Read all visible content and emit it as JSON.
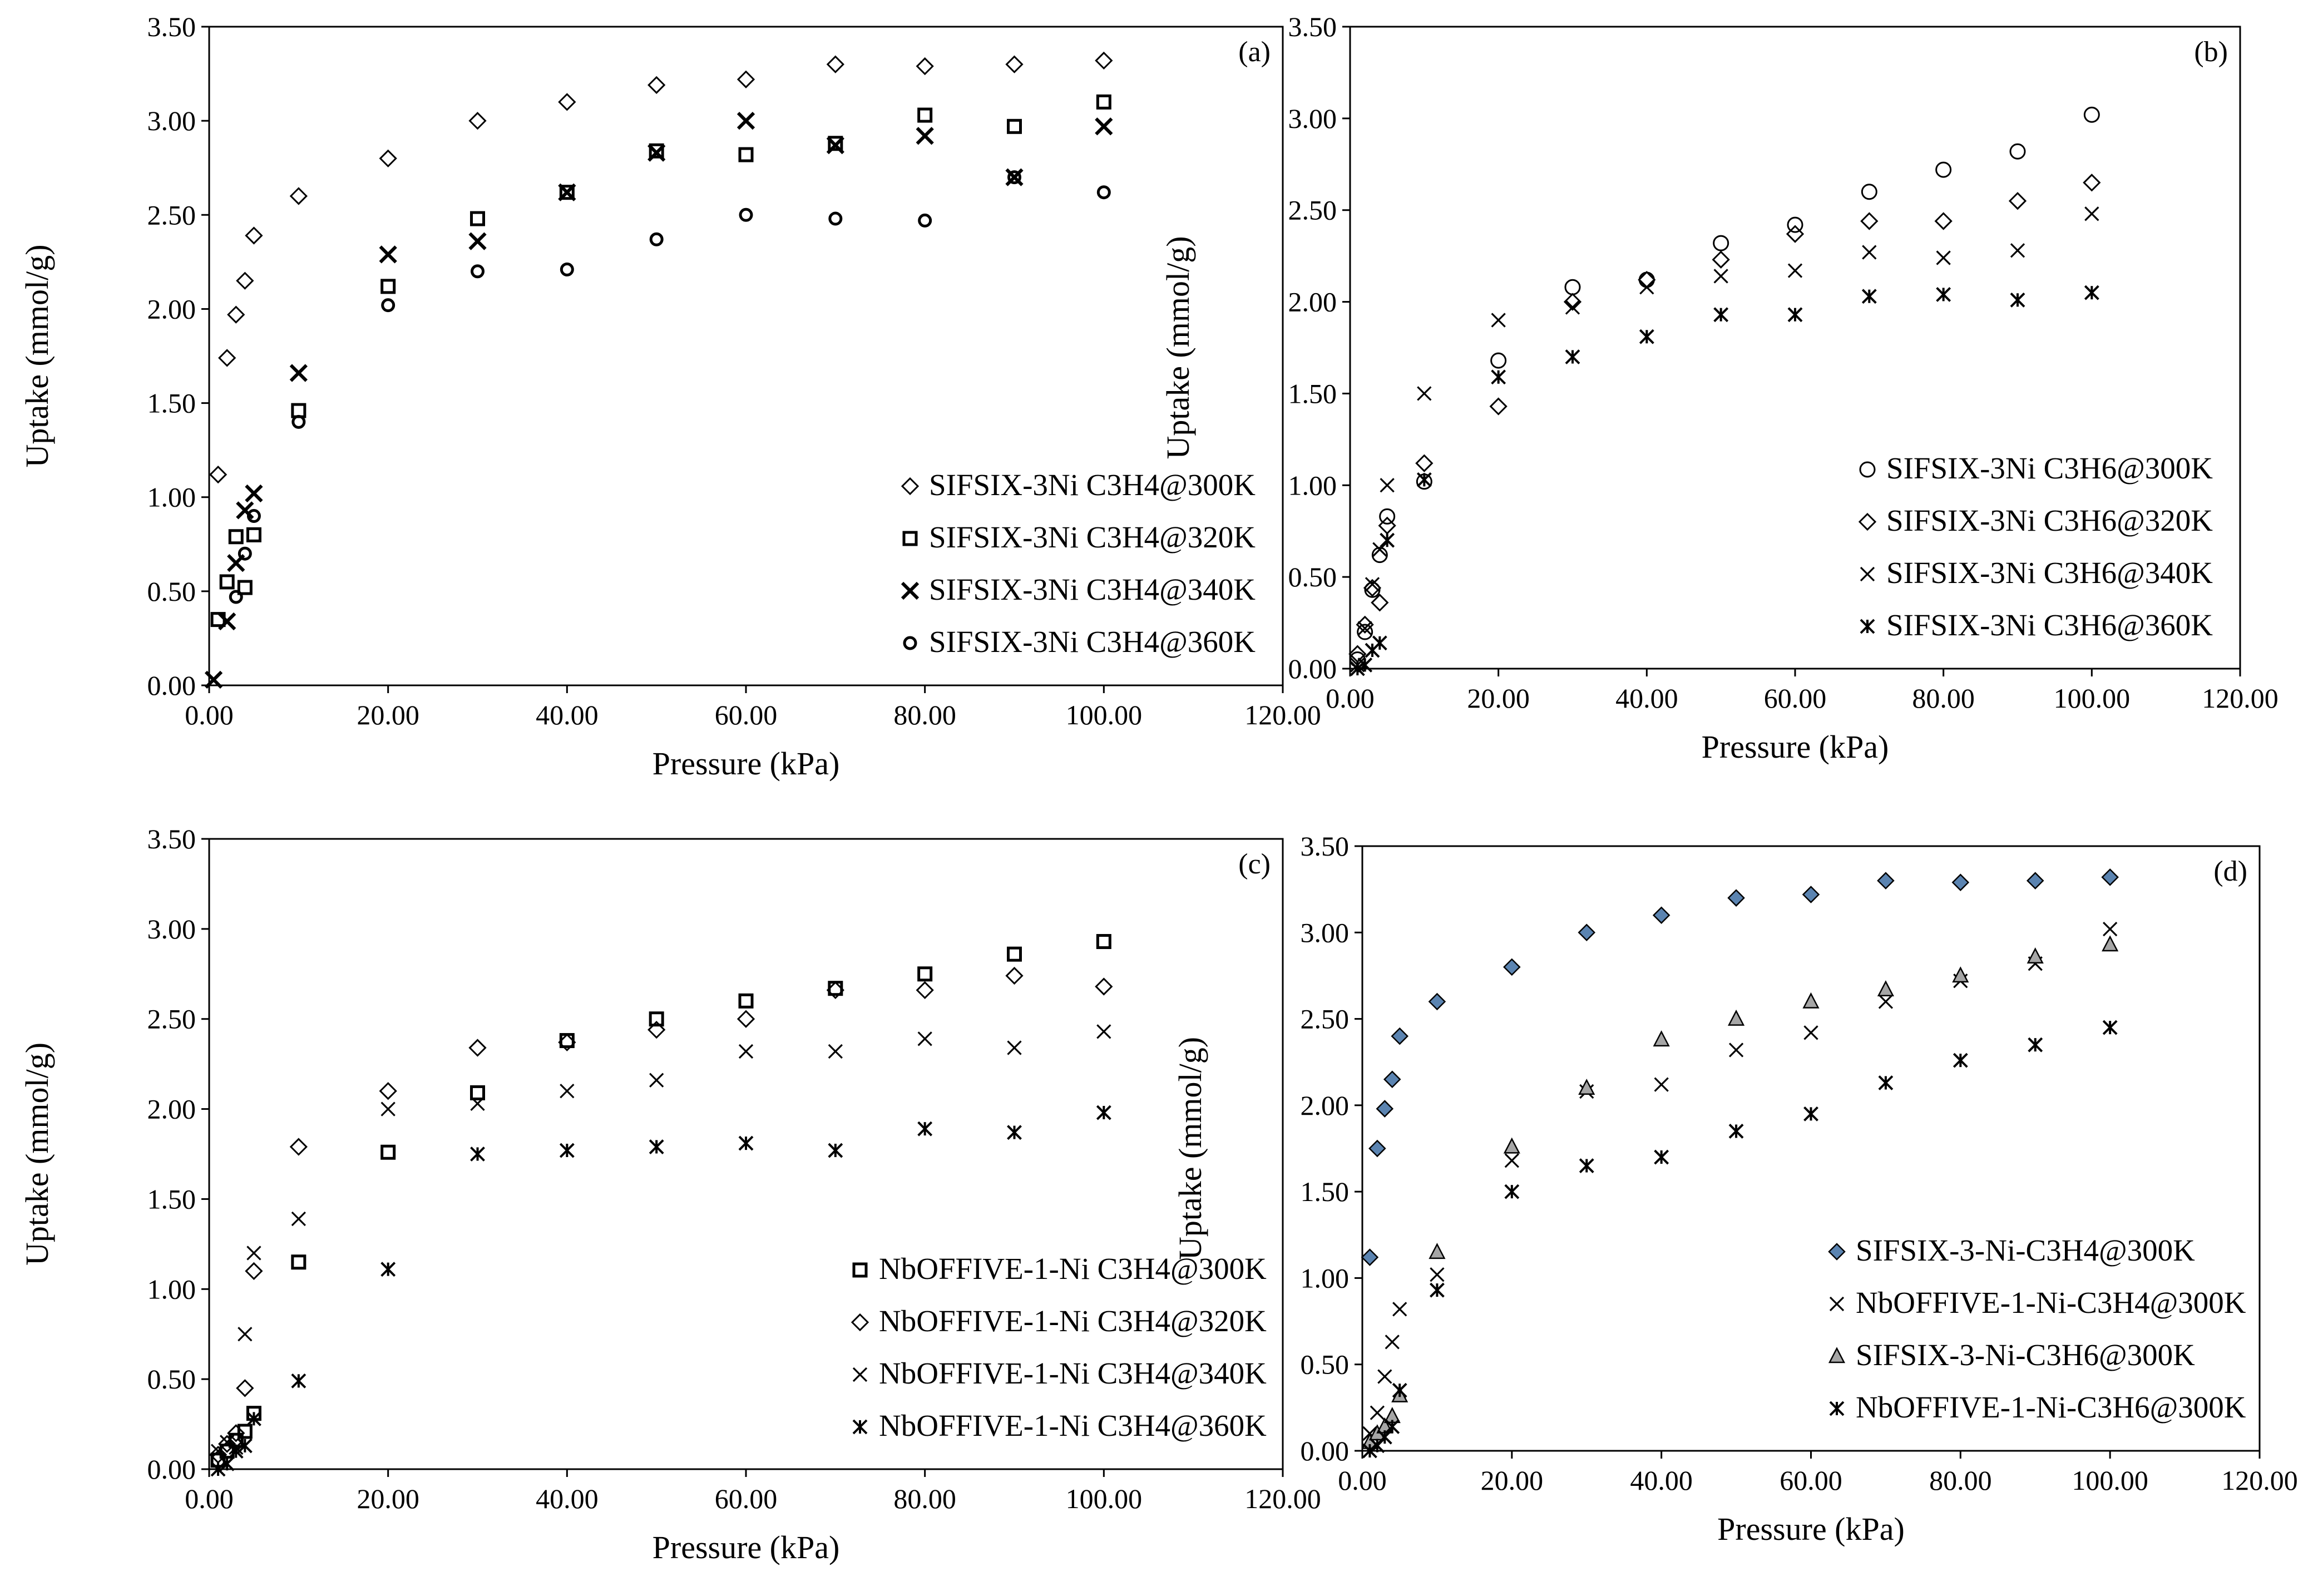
{
  "chart_data": [
    {
      "type": "scatter",
      "panel": "(a)",
      "xlabel": "Pressure (kPa)",
      "ylabel": "Uptake (mmol/g)",
      "xlim": [
        0,
        120
      ],
      "ylim": [
        0,
        3.5
      ],
      "xticks": [
        "0.00",
        "20.00",
        "40.00",
        "60.00",
        "80.00",
        "100.00",
        "120.00"
      ],
      "yticks": [
        "0.00",
        "0.50",
        "1.00",
        "1.50",
        "2.00",
        "2.50",
        "3.00",
        "3.50"
      ],
      "legend_position": "bottom-right",
      "series": [
        {
          "name": "SIFSIX-3Ni C3H4@300K",
          "marker": "diamond",
          "x": [
            1,
            2,
            3,
            4,
            5,
            10,
            20,
            30,
            40,
            50,
            60,
            70,
            80,
            90,
            100
          ],
          "y": [
            1.12,
            1.74,
            1.97,
            2.15,
            2.39,
            2.6,
            2.8,
            3.0,
            3.1,
            3.19,
            3.22,
            3.3,
            3.29,
            3.3,
            3.32
          ]
        },
        {
          "name": "SIFSIX-3Ni C3H4@320K",
          "marker": "square",
          "x": [
            1,
            2,
            3,
            4,
            5,
            10,
            20,
            30,
            40,
            50,
            60,
            70,
            80,
            90,
            100
          ],
          "y": [
            0.35,
            0.55,
            0.79,
            0.52,
            0.8,
            1.46,
            2.12,
            2.48,
            2.62,
            2.84,
            2.82,
            2.88,
            3.03,
            2.97,
            3.1
          ]
        },
        {
          "name": "SIFSIX-3Ni C3H4@340K",
          "marker": "x-bold",
          "x": [
            0.5,
            2,
            3,
            4,
            5,
            10,
            20,
            30,
            40,
            50,
            60,
            70,
            80,
            90,
            100
          ],
          "y": [
            0.03,
            0.34,
            0.65,
            0.93,
            1.02,
            1.66,
            2.29,
            2.36,
            2.62,
            2.83,
            3.0,
            2.87,
            2.92,
            2.7,
            2.97
          ]
        },
        {
          "name": "SIFSIX-3Ni C3H4@360K",
          "marker": "circle-bold",
          "x": [
            3,
            4,
            5,
            10,
            20,
            30,
            40,
            50,
            60,
            70,
            80,
            90,
            100
          ],
          "y": [
            0.47,
            0.7,
            0.9,
            1.4,
            2.02,
            2.2,
            2.21,
            2.37,
            2.5,
            2.48,
            2.47,
            2.7,
            2.62
          ]
        }
      ]
    },
    {
      "type": "scatter",
      "panel": "(b)",
      "xlabel": "Pressure (kPa)",
      "ylabel": "Uptake (mmol/g)",
      "xlim": [
        0,
        120
      ],
      "ylim": [
        0,
        3.5
      ],
      "xticks": [
        "0.00",
        "20.00",
        "40.00",
        "60.00",
        "80.00",
        "100.00",
        "120.00"
      ],
      "yticks": [
        "0.00",
        "0.50",
        "1.00",
        "1.50",
        "2.00",
        "2.50",
        "3.00",
        "3.50"
      ],
      "legend_position": "bottom-right",
      "series": [
        {
          "name": "SIFSIX-3Ni C3H6@300K",
          "marker": "circle",
          "x": [
            1,
            2,
            3,
            4,
            5,
            10,
            20,
            30,
            40,
            50,
            60,
            70,
            80,
            90,
            100
          ],
          "y": [
            0.05,
            0.2,
            0.43,
            0.62,
            0.83,
            1.02,
            1.68,
            2.08,
            2.12,
            2.32,
            2.42,
            2.6,
            2.72,
            2.82,
            3.02
          ]
        },
        {
          "name": "SIFSIX-3Ni C3H6@320K",
          "marker": "diamond",
          "x": [
            1,
            2,
            3,
            4,
            5,
            10,
            20,
            30,
            40,
            50,
            60,
            70,
            80,
            90,
            100
          ],
          "y": [
            0.08,
            0.24,
            0.44,
            0.36,
            0.78,
            1.12,
            1.43,
            2.0,
            2.12,
            2.23,
            2.37,
            2.44,
            2.44,
            2.55,
            2.65
          ]
        },
        {
          "name": "SIFSIX-3Ni C3H6@340K",
          "marker": "x",
          "x": [
            1,
            2,
            3,
            4,
            5,
            10,
            20,
            30,
            40,
            50,
            60,
            70,
            80,
            90,
            100
          ],
          "y": [
            0.02,
            0.22,
            0.46,
            0.65,
            1.0,
            1.5,
            1.9,
            1.97,
            2.08,
            2.14,
            2.17,
            2.27,
            2.24,
            2.28,
            2.48
          ]
        },
        {
          "name": "SIFSIX-3Ni C3H6@360K",
          "marker": "asterisk",
          "x": [
            1,
            2,
            3,
            4,
            5,
            10,
            20,
            30,
            40,
            50,
            60,
            70,
            80,
            90,
            100
          ],
          "y": [
            0.0,
            0.02,
            0.1,
            0.14,
            0.7,
            1.03,
            1.59,
            1.7,
            1.81,
            1.93,
            1.93,
            2.03,
            2.04,
            2.01,
            2.05
          ]
        }
      ]
    },
    {
      "type": "scatter",
      "panel": "(c)",
      "xlabel": "Pressure (kPa)",
      "ylabel": "Uptake (mmol/g)",
      "xlim": [
        0,
        120
      ],
      "ylim": [
        0,
        3.5
      ],
      "xticks": [
        "0.00",
        "20.00",
        "40.00",
        "60.00",
        "80.00",
        "100.00",
        "120.00"
      ],
      "yticks": [
        "0.00",
        "0.50",
        "1.00",
        "1.50",
        "2.00",
        "2.50",
        "3.00",
        "3.50"
      ],
      "legend_position": "bottom-right",
      "series": [
        {
          "name": "NbOFFIVE-1-Ni C3H4@300K",
          "marker": "square",
          "x": [
            1,
            2,
            3,
            4,
            5,
            10,
            20,
            30,
            40,
            50,
            60,
            70,
            80,
            90,
            100
          ],
          "y": [
            0.05,
            0.1,
            0.16,
            0.21,
            0.31,
            1.15,
            1.76,
            2.09,
            2.38,
            2.5,
            2.6,
            2.67,
            2.75,
            2.86,
            2.93
          ]
        },
        {
          "name": "NbOFFIVE-1-Ni C3H4@320K",
          "marker": "diamond",
          "x": [
            1,
            2,
            3,
            4,
            5,
            10,
            20,
            30,
            40,
            50,
            60,
            70,
            80,
            90,
            100
          ],
          "y": [
            0.08,
            0.14,
            0.2,
            0.45,
            1.1,
            1.79,
            2.1,
            2.34,
            2.37,
            2.44,
            2.5,
            2.66,
            2.66,
            2.74,
            2.68
          ]
        },
        {
          "name": "NbOFFIVE-1-Ni C3H4@340K",
          "marker": "x",
          "x": [
            1,
            2,
            3,
            4,
            5,
            10,
            20,
            30,
            40,
            50,
            60,
            70,
            80,
            90,
            100
          ],
          "y": [
            0.1,
            0.15,
            0.12,
            0.75,
            1.2,
            1.39,
            2.0,
            2.03,
            2.1,
            2.16,
            2.32,
            2.32,
            2.39,
            2.34,
            2.43
          ]
        },
        {
          "name": "NbOFFIVE-1-Ni C3H4@360K",
          "marker": "asterisk",
          "x": [
            1,
            2,
            3,
            4,
            5,
            10,
            20,
            30,
            40,
            50,
            60,
            70,
            80,
            90,
            100
          ],
          "y": [
            0.0,
            0.03,
            0.1,
            0.13,
            0.28,
            0.49,
            1.11,
            1.75,
            1.77,
            1.79,
            1.81,
            1.77,
            1.89,
            1.87,
            1.98
          ]
        }
      ]
    },
    {
      "type": "scatter",
      "panel": "(d)",
      "xlabel": "Pressure (kPa)",
      "ylabel": "Uptake (mmol/g)",
      "xlim": [
        0,
        120
      ],
      "ylim": [
        0,
        3.5
      ],
      "xticks": [
        "0.00",
        "20.00",
        "40.00",
        "60.00",
        "80.00",
        "100.00",
        "120.00"
      ],
      "yticks": [
        "0.00",
        "0.50",
        "1.00",
        "1.50",
        "2.00",
        "2.50",
        "3.00",
        "3.50"
      ],
      "legend_position": "bottom-right",
      "series": [
        {
          "name": "SIFSIX-3-Ni-C3H4@300K",
          "marker": "diamond-filled",
          "color": "#5b84b1",
          "x": [
            1,
            2,
            3,
            4,
            5,
            10,
            20,
            30,
            40,
            50,
            60,
            70,
            80,
            90,
            100
          ],
          "y": [
            1.12,
            1.75,
            1.98,
            2.15,
            2.4,
            2.6,
            2.8,
            3.0,
            3.1,
            3.2,
            3.22,
            3.3,
            3.29,
            3.3,
            3.32
          ]
        },
        {
          "name": "NbOFFIVE-1-Ni-C3H4@300K",
          "marker": "x",
          "x": [
            1,
            2,
            3,
            4,
            5,
            10,
            20,
            30,
            40,
            50,
            60,
            70,
            80,
            90,
            100
          ],
          "y": [
            0.1,
            0.22,
            0.43,
            0.63,
            0.82,
            1.02,
            1.68,
            2.08,
            2.12,
            2.32,
            2.42,
            2.6,
            2.72,
            2.82,
            3.02
          ]
        },
        {
          "name": "SIFSIX-3-Ni-C3H6@300K",
          "marker": "triangle-filled",
          "color": "#a6a6a6",
          "x": [
            1,
            2,
            3,
            4,
            5,
            10,
            20,
            30,
            40,
            50,
            60,
            70,
            80,
            90,
            100
          ],
          "y": [
            0.05,
            0.1,
            0.14,
            0.2,
            0.32,
            1.15,
            1.76,
            2.1,
            2.38,
            2.5,
            2.6,
            2.67,
            2.75,
            2.86,
            2.93
          ]
        },
        {
          "name": "NbOFFIVE-1-Ni-C3H6@300K",
          "marker": "asterisk",
          "x": [
            1,
            2,
            3,
            4,
            5,
            10,
            20,
            30,
            40,
            50,
            60,
            70,
            80,
            90,
            100
          ],
          "y": [
            0.0,
            0.03,
            0.08,
            0.14,
            0.35,
            0.93,
            1.5,
            1.65,
            1.7,
            1.85,
            1.95,
            2.13,
            2.26,
            2.35,
            2.45
          ]
        }
      ]
    }
  ]
}
